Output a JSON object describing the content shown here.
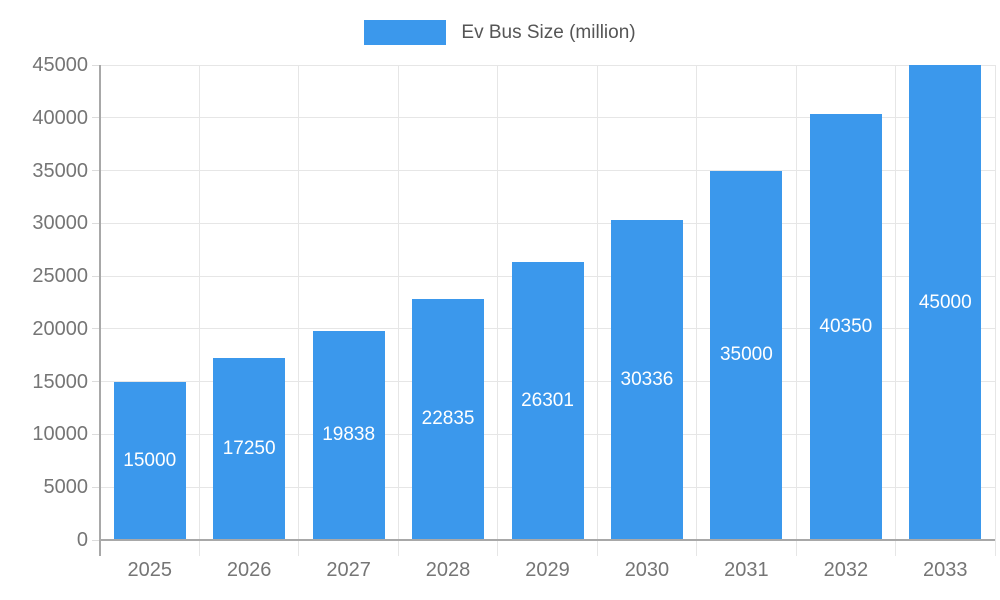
{
  "legend": {
    "swatch_color": "#3B98EC"
  },
  "chart_data": {
    "type": "bar",
    "title": "",
    "series_name": "Ev Bus Size (million)",
    "categories": [
      "2025",
      "2026",
      "2027",
      "2028",
      "2029",
      "2030",
      "2031",
      "2032",
      "2033"
    ],
    "values": [
      15000,
      17250,
      19838,
      22835,
      26301,
      30336,
      35000,
      40350,
      45000
    ],
    "value_labels": [
      "15000",
      "17250",
      "19838",
      "22835",
      "26301",
      "30336",
      "35000",
      "40350",
      "45000"
    ],
    "xlabel": "",
    "ylabel": "",
    "ylim": [
      0,
      45000
    ],
    "ytick_step": 5000,
    "ytick_labels": [
      "0",
      "5000",
      "10000",
      "15000",
      "20000",
      "25000",
      "30000",
      "35000",
      "40000",
      "45000"
    ],
    "grid": true,
    "legend_position": "top-center",
    "bar_color": "#3B98EC",
    "value_label_color": "#ffffff",
    "axis_text_color": "#757575",
    "gridline_color": "#e6e6e6",
    "tick_color": "#dcdcdc",
    "axis_line_color": "#a8a8a8",
    "background_color": "#ffffff"
  }
}
